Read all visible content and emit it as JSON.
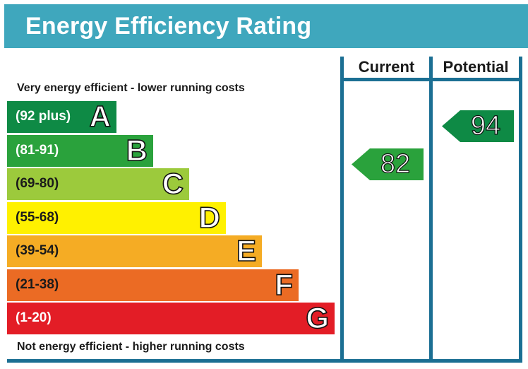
{
  "title": "Energy Efficiency Rating",
  "colors": {
    "header": "#3fa7bd",
    "frame": "#1b6f93"
  },
  "columns": {
    "current": "Current",
    "potential": "Potential"
  },
  "top_note": "Very energy efficient - lower running costs",
  "bottom_note": "Not energy efficient - higher running costs",
  "chart_data": {
    "type": "bar",
    "title": "Energy Efficiency Rating",
    "bands": [
      {
        "letter": "A",
        "range": "(92 plus)",
        "color": "#0e8a45",
        "text_color": "#ffffff"
      },
      {
        "letter": "B",
        "range": "(81-91)",
        "color": "#2aa23c",
        "text_color": "#ffffff"
      },
      {
        "letter": "C",
        "range": "(69-80)",
        "color": "#9cca3c",
        "text_color": "#1a1a1a"
      },
      {
        "letter": "D",
        "range": "(55-68)",
        "color": "#fff100",
        "text_color": "#1a1a1a"
      },
      {
        "letter": "E",
        "range": "(39-54)",
        "color": "#f5ac24",
        "text_color": "#1a1a1a"
      },
      {
        "letter": "F",
        "range": "(21-38)",
        "color": "#eb6b24",
        "text_color": "#1a1a1a"
      },
      {
        "letter": "G",
        "range": "(1-20)",
        "color": "#e31d26",
        "text_color": "#ffffff"
      }
    ],
    "current": {
      "value": 82,
      "band": "B",
      "color": "#2aa23c"
    },
    "potential": {
      "value": 94,
      "band": "A",
      "color": "#0e8a45"
    }
  }
}
